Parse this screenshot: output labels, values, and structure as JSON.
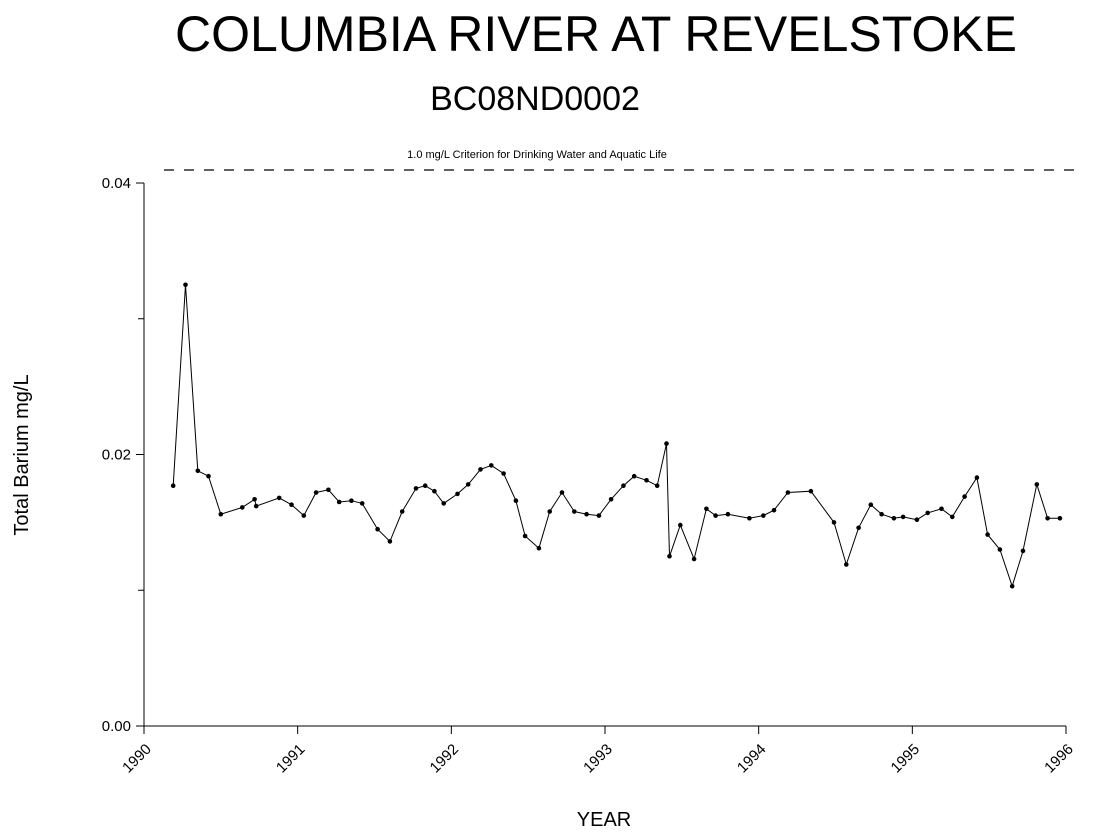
{
  "chart_data": {
    "type": "line",
    "title": "COLUMBIA RIVER AT REVELSTOKE",
    "subtitle": "BC08ND0002",
    "xlabel": "YEAR",
    "ylabel": "Total Barium mg/L",
    "xlim": [
      1990,
      1996
    ],
    "ylim": [
      0,
      0.04
    ],
    "x_ticks": [
      "1990",
      "1991",
      "1992",
      "1993",
      "1994",
      "1995",
      "1996"
    ],
    "y_ticks": [
      "0.00",
      "0.02",
      "0.04"
    ],
    "grid": false,
    "criterion": {
      "label": "1.0 mg/L Criterion for Drinking Water and Aquatic Life",
      "value": 1.0,
      "style": "dashed"
    },
    "series": [
      {
        "x": [
          1990.19,
          1990.27,
          1990.35,
          1990.42,
          1990.5,
          1990.64,
          1990.72,
          1990.73,
          1990.88,
          1990.96,
          1991.04,
          1991.12,
          1991.2,
          1991.27,
          1991.35,
          1991.42,
          1991.52,
          1991.6,
          1991.68,
          1991.77,
          1991.83,
          1991.89,
          1991.95,
          1992.04,
          1992.11,
          1992.19,
          1992.26,
          1992.34,
          1992.42,
          1992.48,
          1992.57,
          1992.64,
          1992.72,
          1992.8,
          1992.88,
          1992.96,
          1993.04,
          1993.12,
          1993.19,
          1993.27,
          1993.34,
          1993.4,
          1993.42,
          1993.49,
          1993.58,
          1993.66,
          1993.72,
          1993.8,
          1993.94,
          1994.03,
          1994.1,
          1994.19,
          1994.34,
          1994.49,
          1994.57,
          1994.65,
          1994.73,
          1994.8,
          1994.88,
          1994.94,
          1995.03,
          1995.1,
          1995.19,
          1995.26,
          1995.34,
          1995.42,
          1995.49,
          1995.57,
          1995.65,
          1995.72,
          1995.81,
          1995.88,
          1995.96
        ],
        "values": [
          0.0177,
          0.0325,
          0.0188,
          0.0184,
          0.0156,
          0.0161,
          0.0167,
          0.0162,
          0.0168,
          0.0163,
          0.0155,
          0.0172,
          0.0174,
          0.0165,
          0.0166,
          0.0164,
          0.0145,
          0.0136,
          0.0158,
          0.0175,
          0.0177,
          0.0173,
          0.0164,
          0.0171,
          0.0178,
          0.0189,
          0.0192,
          0.0186,
          0.0166,
          0.014,
          0.0131,
          0.0158,
          0.0172,
          0.0158,
          0.0156,
          0.0155,
          0.0167,
          0.0177,
          0.0184,
          0.0181,
          0.0177,
          0.0208,
          0.0125,
          0.0148,
          0.0123,
          0.016,
          0.0155,
          0.0156,
          0.0153,
          0.0155,
          0.0159,
          0.0172,
          0.0173,
          0.015,
          0.0119,
          0.0146,
          0.0163,
          0.0156,
          0.0153,
          0.0154,
          0.0152,
          0.0157,
          0.016,
          0.0154,
          0.0169,
          0.0183,
          0.0141,
          0.013,
          0.0103,
          0.0129,
          0.0178,
          0.0153,
          0.0153
        ]
      }
    ]
  }
}
